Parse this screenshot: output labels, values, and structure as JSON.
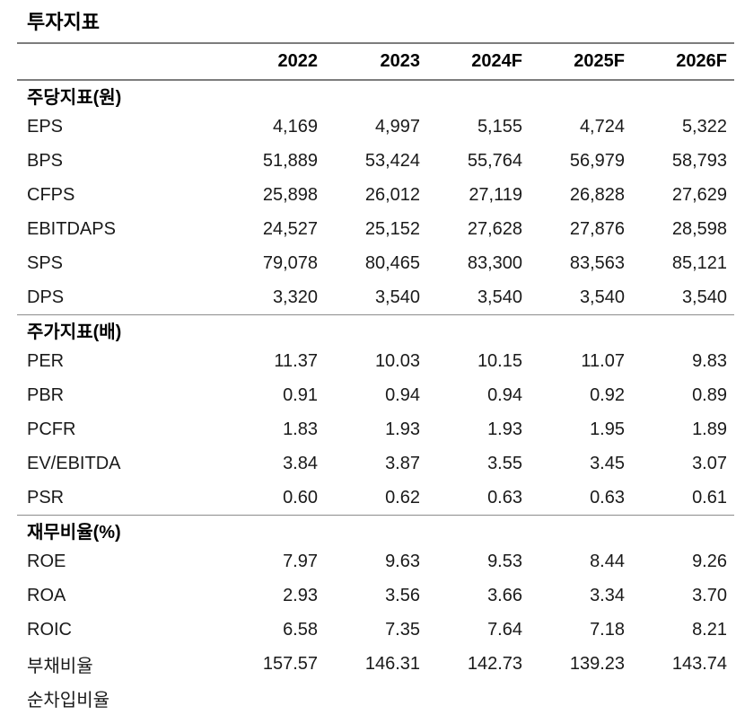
{
  "title": "투자지표",
  "table": {
    "columns": [
      "2022",
      "2023",
      "2024F",
      "2025F",
      "2026F"
    ],
    "sections": [
      {
        "header": "주당지표(원)",
        "rows": [
          {
            "label": "EPS",
            "values": [
              "4,169",
              "4,997",
              "5,155",
              "4,724",
              "5,322"
            ]
          },
          {
            "label": "BPS",
            "values": [
              "51,889",
              "53,424",
              "55,764",
              "56,979",
              "58,793"
            ]
          },
          {
            "label": "CFPS",
            "values": [
              "25,898",
              "26,012",
              "27,119",
              "26,828",
              "27,629"
            ]
          },
          {
            "label": "EBITDAPS",
            "values": [
              "24,527",
              "25,152",
              "27,628",
              "27,876",
              "28,598"
            ]
          },
          {
            "label": "SPS",
            "values": [
              "79,078",
              "80,465",
              "83,300",
              "83,563",
              "85,121"
            ]
          },
          {
            "label": "DPS",
            "values": [
              "3,320",
              "3,540",
              "3,540",
              "3,540",
              "3,540"
            ]
          }
        ]
      },
      {
        "header": "주가지표(배)",
        "rows": [
          {
            "label": "PER",
            "values": [
              "11.37",
              "10.03",
              "10.15",
              "11.07",
              "9.83"
            ]
          },
          {
            "label": "PBR",
            "values": [
              "0.91",
              "0.94",
              "0.94",
              "0.92",
              "0.89"
            ]
          },
          {
            "label": "PCFR",
            "values": [
              "1.83",
              "1.93",
              "1.93",
              "1.95",
              "1.89"
            ]
          },
          {
            "label": "EV/EBITDA",
            "values": [
              "3.84",
              "3.87",
              "3.55",
              "3.45",
              "3.07"
            ]
          },
          {
            "label": "PSR",
            "values": [
              "0.60",
              "0.62",
              "0.63",
              "0.63",
              "0.61"
            ]
          }
        ]
      },
      {
        "header": "재무비율(%)",
        "rows": [
          {
            "label": "ROE",
            "values": [
              "7.97",
              "9.63",
              "9.53",
              "8.44",
              "9.26"
            ]
          },
          {
            "label": "ROA",
            "values": [
              "2.93",
              "3.56",
              "3.66",
              "3.34",
              "3.70"
            ]
          },
          {
            "label": "ROIC",
            "values": [
              "6.58",
              "7.35",
              "7.64",
              "7.18",
              "8.21"
            ]
          },
          {
            "label": "부채비율",
            "values": [
              "157.57",
              "146.31",
              "142.73",
              "139.23",
              "143.74"
            ]
          },
          {
            "label": "순차입비율",
            "values": [
              "",
              "",
              "",
              "",
              ""
            ]
          }
        ]
      }
    ]
  }
}
